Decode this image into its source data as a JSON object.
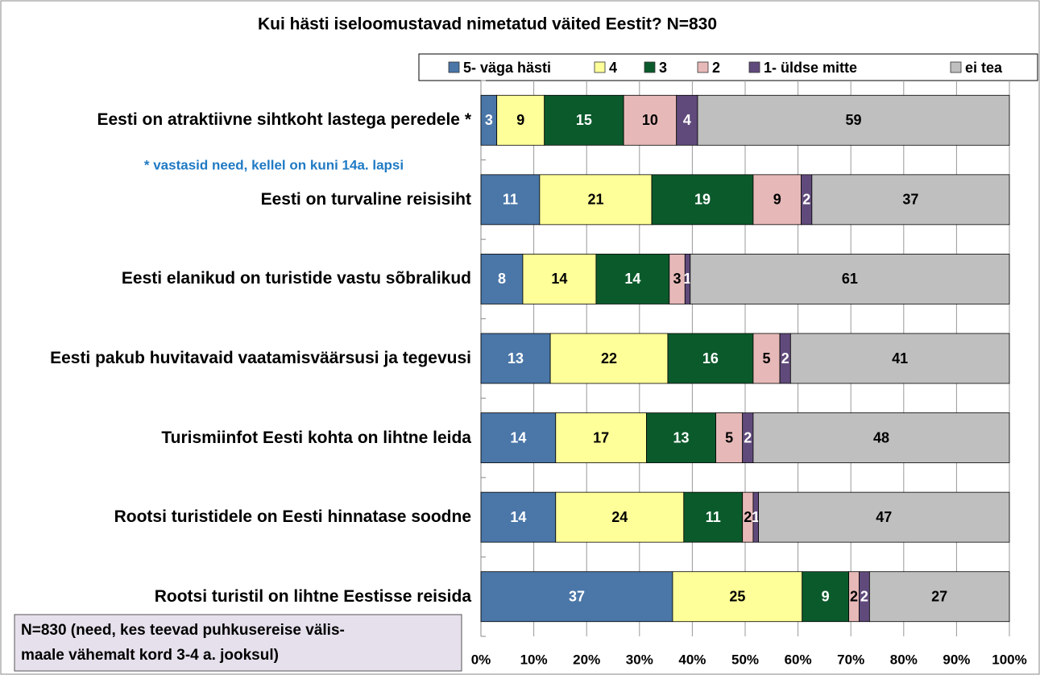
{
  "chart_data": {
    "type": "bar",
    "orientation": "horizontal",
    "stacking": "percent",
    "title": "Kui hästi iseloomustavad nimetatud väited Eestit?  N=830",
    "categories": [
      "Eesti on atraktiivne sihtkoht lastega peredele *",
      "Eesti on turvaline reisisiht",
      "Eesti elanikud on turistide vastu sõbralikud",
      "Eesti pakub huvitavaid vaatamisväärsusi ja tegevusi",
      "Turismiinfot Eesti kohta on lihtne leida",
      "Rootsi turistidele on Eesti hinnatase soodne",
      "Rootsi turistil on lihtne Eestisse reisida"
    ],
    "series": [
      {
        "name": "5- väga hästi",
        "color": "#4a76a8",
        "values": [
          3,
          11,
          8,
          13,
          14,
          14,
          37
        ]
      },
      {
        "name": "4",
        "color": "#ffff99",
        "values": [
          9,
          21,
          14,
          22,
          17,
          24,
          25
        ]
      },
      {
        "name": "3",
        "color": "#0b5a2c",
        "values": [
          15,
          19,
          14,
          16,
          13,
          11,
          9
        ]
      },
      {
        "name": "2",
        "color": "#e6b9b8",
        "values": [
          10,
          9,
          3,
          5,
          5,
          2,
          2
        ]
      },
      {
        "name": "1- üldse mitte",
        "color": "#604a7b",
        "values": [
          4,
          2,
          1,
          2,
          2,
          1,
          2
        ]
      },
      {
        "name": "ei tea",
        "color": "#bfbfbf",
        "values": [
          59,
          37,
          61,
          41,
          48,
          47,
          27
        ]
      }
    ],
    "xlim": [
      0,
      100
    ],
    "xticks": [
      {
        "value": 0,
        "label": "0%"
      },
      {
        "value": 10,
        "label": "10%"
      },
      {
        "value": 20,
        "label": "20%"
      },
      {
        "value": 30,
        "label": "30%"
      },
      {
        "value": 40,
        "label": "40%"
      },
      {
        "value": 50,
        "label": "50%"
      },
      {
        "value": 60,
        "label": "60%"
      },
      {
        "value": 70,
        "label": "70%"
      },
      {
        "value": 80,
        "label": "80%"
      },
      {
        "value": 90,
        "label": "90%"
      },
      {
        "value": 100,
        "label": "100%"
      }
    ],
    "grid": true,
    "legend": "top",
    "annotations": [
      "* vastasid need, kellel on kuni 14a. lapsi",
      "N=830 (need, kes teevad puhkusereise välis-",
      "maale vähemalt kord 3-4 a. jooksul)"
    ]
  }
}
